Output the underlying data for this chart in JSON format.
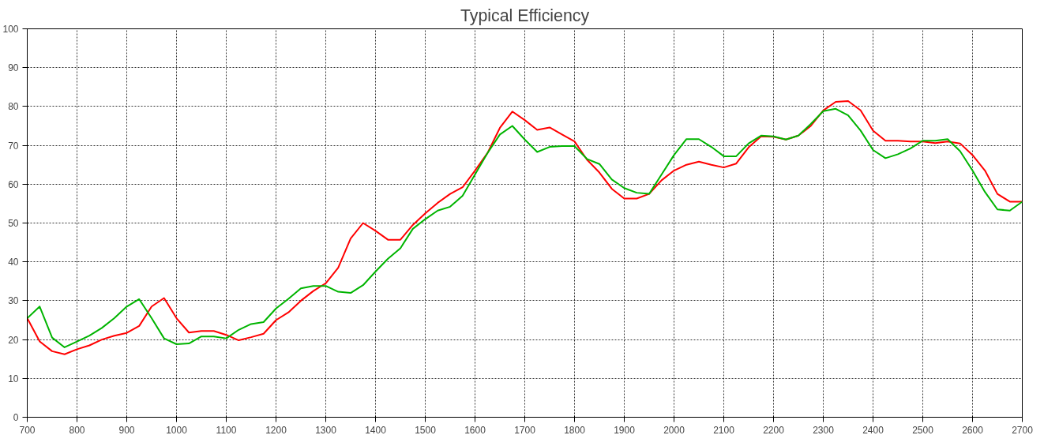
{
  "chart_data": {
    "type": "line",
    "title": "Typical Efficiency",
    "x": [
      700,
      725,
      750,
      775,
      800,
      825,
      850,
      875,
      900,
      925,
      950,
      975,
      1000,
      1025,
      1050,
      1075,
      1100,
      1125,
      1150,
      1175,
      1200,
      1225,
      1250,
      1275,
      1300,
      1325,
      1350,
      1375,
      1400,
      1425,
      1450,
      1475,
      1500,
      1525,
      1550,
      1575,
      1600,
      1625,
      1650,
      1675,
      1700,
      1725,
      1750,
      1775,
      1800,
      1825,
      1850,
      1875,
      1900,
      1925,
      1950,
      1975,
      2000,
      2025,
      2050,
      2075,
      2100,
      2125,
      2150,
      2175,
      2200,
      2225,
      2250,
      2275,
      2300,
      2325,
      2350,
      2375,
      2400,
      2425,
      2450,
      2475,
      2500,
      2525,
      2550,
      2575,
      2600,
      2625,
      2650,
      2675,
      2700
    ],
    "series": [
      {
        "color": "#ff0000",
        "values": [
          25.5,
          19.5,
          17,
          16.2,
          17.5,
          18.5,
          20,
          21,
          21.7,
          23.5,
          28.5,
          30.7,
          25.5,
          21.8,
          22.2,
          22.2,
          21.2,
          19.8,
          20.6,
          21.5,
          25,
          27,
          30,
          32.5,
          34.5,
          38.5,
          46,
          50,
          48,
          45.7,
          45.7,
          49.5,
          52.5,
          55.2,
          57.5,
          59.2,
          63.5,
          68,
          74.5,
          78.7,
          76.5,
          74,
          74.6,
          72.8,
          71,
          66.3,
          63,
          58.8,
          56.3,
          56.3,
          57.5,
          61,
          63.5,
          65,
          65.8,
          65,
          64.3,
          65.3,
          69.5,
          72.3,
          72.2,
          71.5,
          72.5,
          75,
          79,
          81.2,
          81.4,
          79,
          73.8,
          71.2,
          71.2,
          71,
          71,
          70.6,
          71,
          70.5,
          67.5,
          63.5,
          57.5,
          55.5,
          55.5
        ]
      },
      {
        "color": "#00b400",
        "values": [
          25.5,
          28.5,
          20.5,
          18,
          19.5,
          21,
          23,
          25.5,
          28.5,
          30.4,
          25.5,
          20.3,
          18.8,
          19,
          20.8,
          20.8,
          20.3,
          22.5,
          24,
          24.5,
          28,
          30.5,
          33.2,
          33.8,
          33.8,
          32.3,
          32,
          34,
          37.5,
          40.8,
          43.5,
          48.5,
          51,
          53.2,
          54.2,
          57,
          62.5,
          68,
          72.8,
          75,
          71.5,
          68.3,
          69.6,
          69.8,
          69.8,
          66.5,
          65.2,
          61.2,
          59,
          57.8,
          57.5,
          62.5,
          67.5,
          71.6,
          71.6,
          69.6,
          67.2,
          67.2,
          70.5,
          72.5,
          72.3,
          71.5,
          72.5,
          75.5,
          78.8,
          79.4,
          77.7,
          73.8,
          68.8,
          66.7,
          67.7,
          69.2,
          71.2,
          71.2,
          71.6,
          68.5,
          63.5,
          58,
          53.5,
          53.2,
          55.5
        ]
      }
    ],
    "xlim": [
      700,
      2700
    ],
    "ylim": [
      0,
      100
    ],
    "xticks": [
      700,
      800,
      900,
      1000,
      1100,
      1200,
      1300,
      1400,
      1500,
      1600,
      1700,
      1800,
      1900,
      2000,
      2100,
      2200,
      2300,
      2400,
      2500,
      2600,
      2700
    ],
    "yticks": [
      0,
      10,
      20,
      30,
      40,
      50,
      60,
      70,
      80,
      90,
      100
    ],
    "grid": true,
    "line_style": "solid",
    "marker": "none"
  }
}
